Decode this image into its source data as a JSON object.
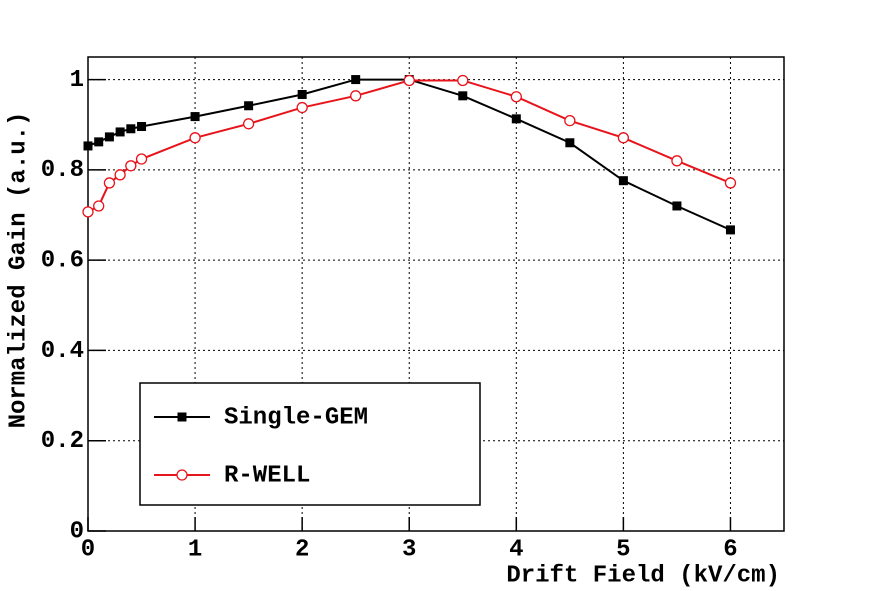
{
  "chart_data": {
    "type": "line",
    "x_label": "Drift Field (kV/cm)",
    "y_label": "Normalized Gain (a.u.)",
    "x": [
      0,
      0.1,
      0.2,
      0.3,
      0.4,
      0.5,
      1,
      1.5,
      2,
      2.5,
      3,
      3.5,
      4,
      4.5,
      5,
      5.5,
      6
    ],
    "series": [
      {
        "name": "Single-GEM",
        "color": "#000000",
        "marker": "square",
        "values": [
          0.853,
          0.862,
          0.873,
          0.884,
          0.891,
          0.896,
          0.918,
          0.942,
          0.967,
          1.0,
          1.0,
          0.964,
          0.913,
          0.86,
          0.776,
          0.72,
          0.667
        ]
      },
      {
        "name": "R-WELL",
        "color": "#e8141b",
        "marker": "open-circle",
        "values": [
          0.707,
          0.72,
          0.771,
          0.789,
          0.809,
          0.824,
          0.871,
          0.902,
          0.938,
          0.964,
          0.998,
          0.998,
          0.962,
          0.909,
          0.871,
          0.82,
          0.771
        ]
      }
    ],
    "xlim": [
      0,
      6.5
    ],
    "ylim": [
      0,
      1.05
    ],
    "xticks": [
      0,
      1,
      2,
      3,
      4,
      5,
      6
    ],
    "yticks": [
      0,
      0.2,
      0.4,
      0.6,
      0.8,
      1
    ],
    "grid": true,
    "legend": "lower left"
  }
}
